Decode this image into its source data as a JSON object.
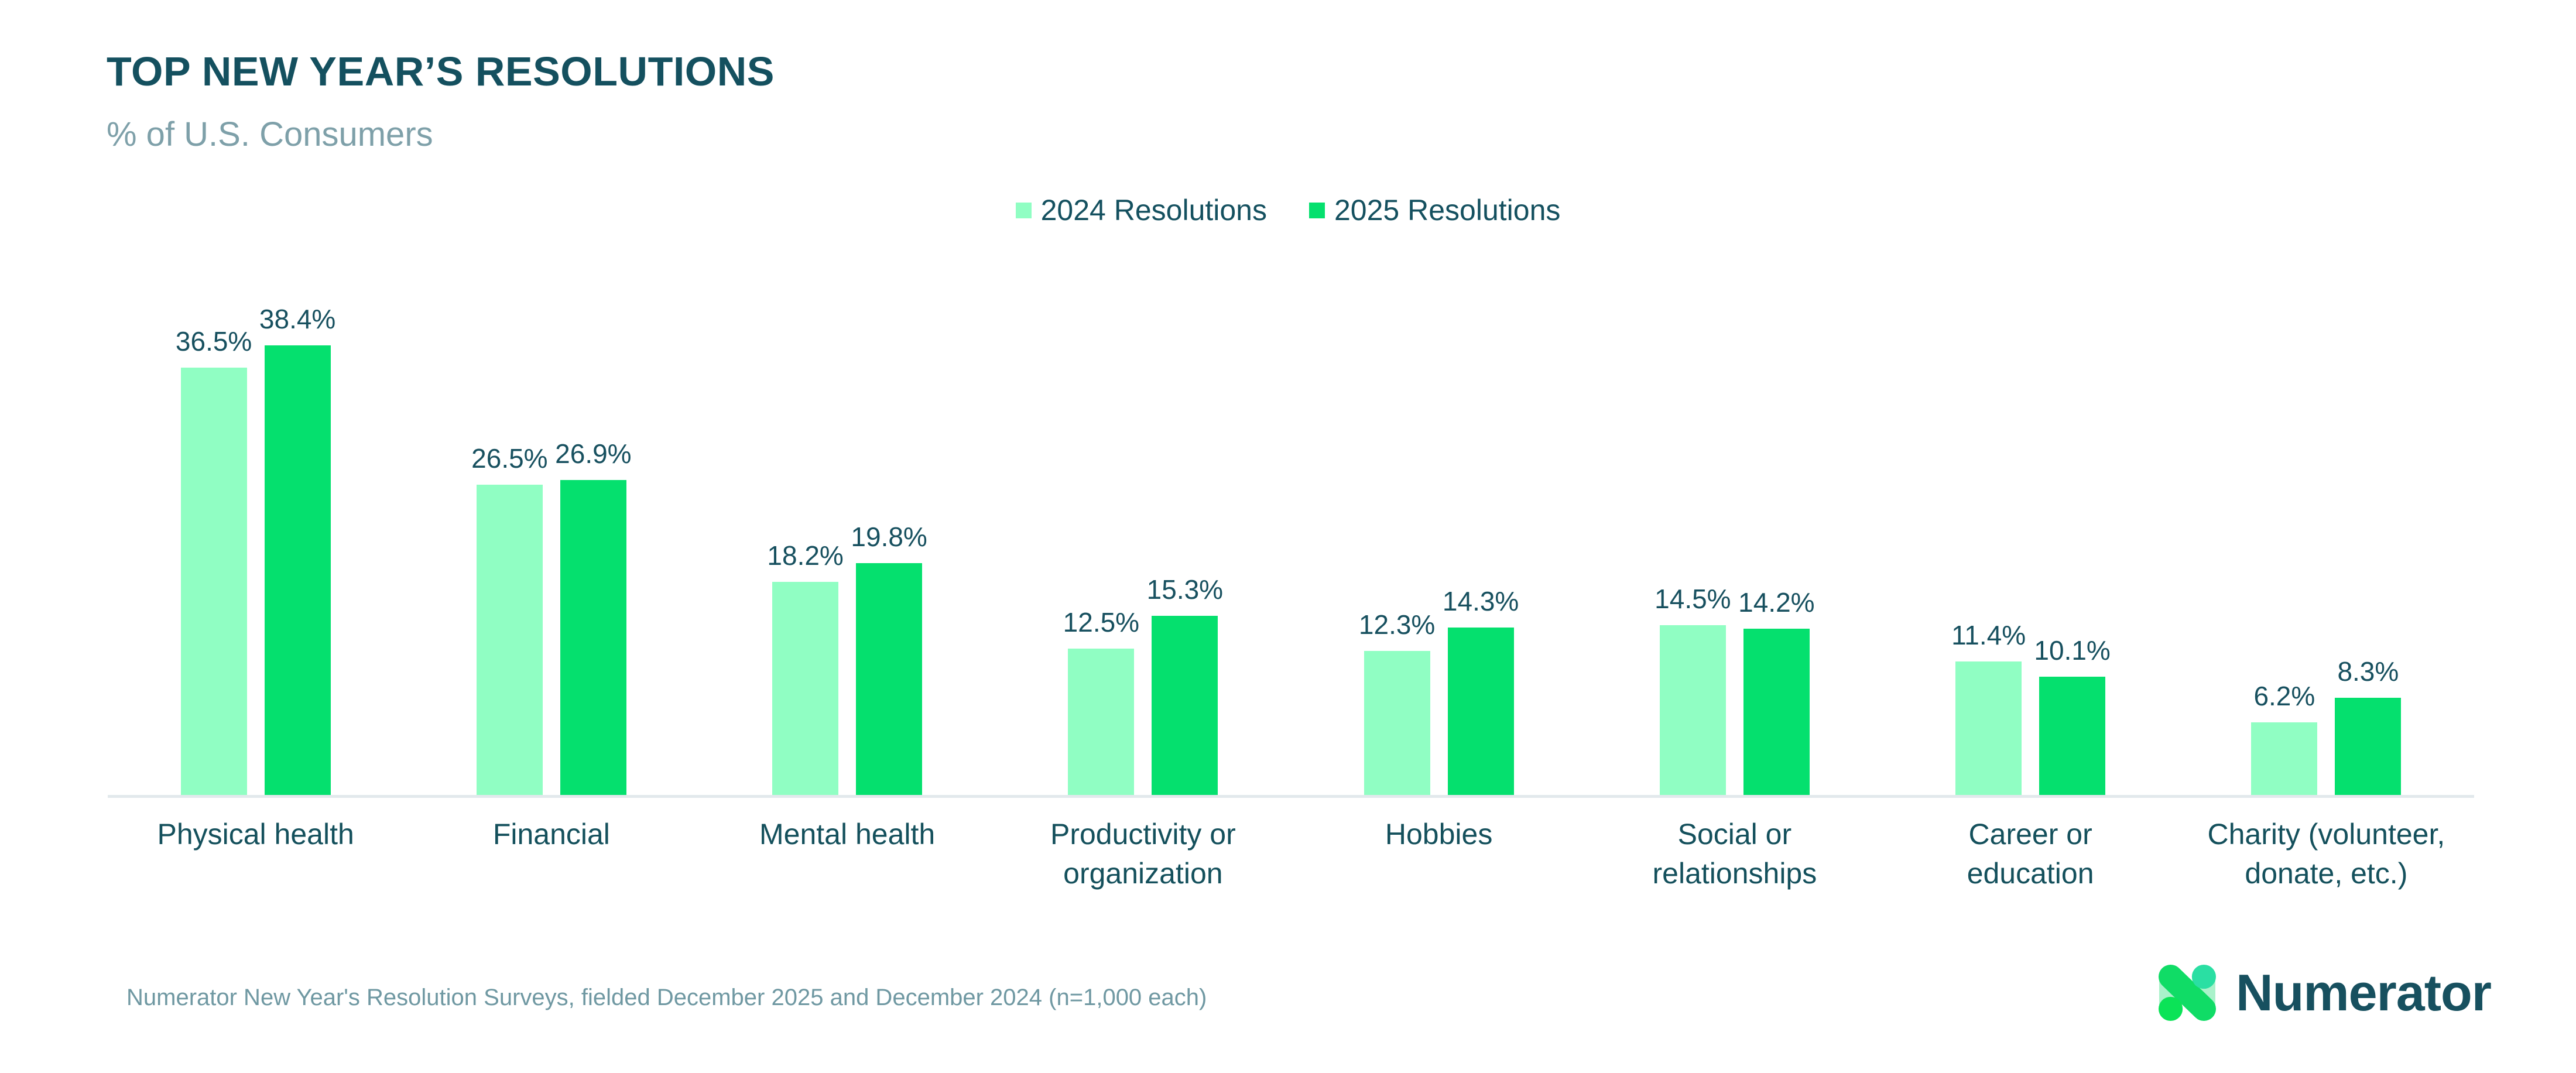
{
  "header": {
    "title": "TOP NEW YEAR’S RESOLUTIONS",
    "subtitle": "% of U.S. Consumers"
  },
  "chart_data": {
    "type": "bar",
    "title": "TOP NEW YEAR’S RESOLUTIONS",
    "subtitle": "% of U.S. Consumers",
    "categories": [
      "Physical health",
      "Financial",
      "Mental health",
      "Productivity or organization",
      "Hobbies",
      "Social or relationships",
      "Career or education",
      "Charity (volunteer, donate, etc.)"
    ],
    "category_display_lines": [
      [
        "Physical health"
      ],
      [
        "Financial"
      ],
      [
        "Mental health"
      ],
      [
        "Productivity or",
        "organization"
      ],
      [
        "Hobbies"
      ],
      [
        "Social or",
        "relationships"
      ],
      [
        "Career or",
        "education"
      ],
      [
        "Charity (volunteer,",
        "donate, etc.)"
      ]
    ],
    "series": [
      {
        "name": "2024 Resolutions",
        "color": "#90FEC3",
        "values": [
          36.5,
          26.5,
          18.2,
          12.5,
          12.3,
          14.5,
          11.4,
          6.2
        ]
      },
      {
        "name": "2025 Resolutions",
        "color": "#05E06E",
        "values": [
          38.4,
          26.9,
          19.8,
          15.3,
          14.3,
          14.2,
          10.1,
          8.3
        ]
      }
    ],
    "value_suffix": "%",
    "xlabel": "",
    "ylabel": "% of U.S. Consumers",
    "ylim": [
      0,
      40
    ],
    "grid": false,
    "y_axis_shown": false,
    "legend_position": "top-center",
    "data_labels": true
  },
  "footer": {
    "source": "Numerator New Year's Resolution Surveys, fielded December 2025 and December 2024 (n=1,000 each)",
    "logo_text": "Numerator"
  },
  "colors": {
    "series_2024": "#90FEC3",
    "series_2025": "#05E06E",
    "title_teal": "#14505F",
    "label_teal": "#17505F",
    "muted_teal": "#7EA0A9",
    "footer_teal": "#6F98A2",
    "axis_line": "#E2E9EC",
    "logo_diagonal_green": "#10DC66",
    "logo_light_green": "#9CF0C3",
    "logo_bottom_circle_green": "#0BE357",
    "logo_top_circle_teal": "#2ADFA3"
  }
}
